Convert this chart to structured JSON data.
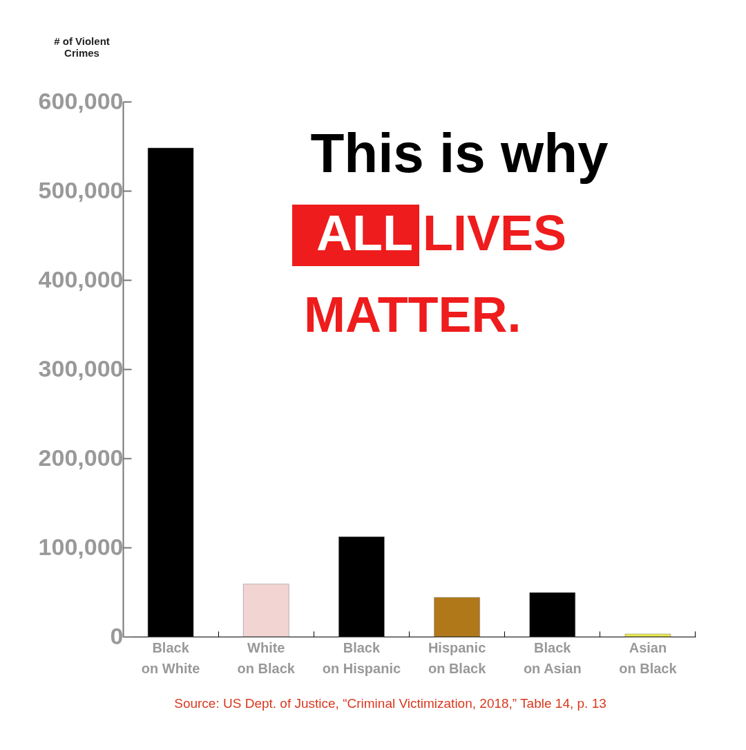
{
  "chart_data": {
    "type": "bar",
    "ylabel": "# of Violent Crimes",
    "categories": [
      "Black on White",
      "White on Black",
      "Black on Hispanic",
      "Hispanic on Black",
      "Black on Asian",
      "Asian on Black"
    ],
    "values": [
      548000,
      59000,
      112000,
      44000,
      49500,
      3000
    ],
    "colors": [
      "#000000",
      "#f2d5d3",
      "#000000",
      "#b07818",
      "#000000",
      "#e8e84a"
    ],
    "ylim": [
      0,
      600000
    ],
    "yticks": [
      {
        "value": 0,
        "label": "0"
      },
      {
        "value": 100000,
        "label": "100,000"
      },
      {
        "value": 200000,
        "label": "200,000"
      },
      {
        "value": 300000,
        "label": "300,000"
      },
      {
        "value": 400000,
        "label": "400,000"
      },
      {
        "value": 500000,
        "label": "500,000"
      },
      {
        "value": 600000,
        "label": "600,000"
      }
    ],
    "grid": false,
    "legend": false,
    "annotations": [
      "This is why",
      "ALL",
      "LIVES",
      "MATTER.",
      "Source: US Dept. of Justice, “Criminal Victimization, 2018,” Table 14, p. 13"
    ]
  }
}
